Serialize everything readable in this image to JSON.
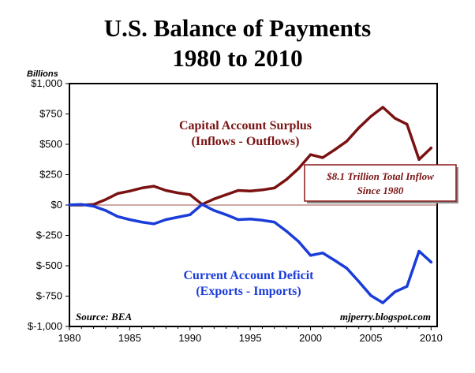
{
  "title_line1": "U.S. Balance of Payments",
  "title_line2": "1980 to 2010",
  "units_label": "Billions",
  "source": "Source: BEA",
  "credit": "mjperry.blogspot.com",
  "colors": {
    "capital": "#7a1212",
    "current": "#1a3cd8",
    "zero_line": "#a05050",
    "callout_border": "#8b1a1a",
    "callout_text": "#7a1212"
  },
  "chart_data": {
    "type": "line",
    "title": "U.S. Balance of Payments 1980 to 2010",
    "ylabel": "Billions",
    "xlabel": "",
    "xlim": [
      1980,
      2010.5
    ],
    "ylim": [
      -1000,
      1000
    ],
    "x_ticks": [
      1980,
      1985,
      1990,
      1995,
      2000,
      2005,
      2010
    ],
    "y_ticks": [
      {
        "value": 1000,
        "label": "$1,000"
      },
      {
        "value": 750,
        "label": "$750"
      },
      {
        "value": 500,
        "label": "$500"
      },
      {
        "value": 250,
        "label": "$250"
      },
      {
        "value": 0,
        "label": "$0"
      },
      {
        "value": -250,
        "label": "$-250"
      },
      {
        "value": -500,
        "label": "$-500"
      },
      {
        "value": -750,
        "label": "$-750"
      },
      {
        "value": -1000,
        "label": "$-1,000"
      }
    ],
    "grid": false,
    "x": [
      1980,
      1981,
      1982,
      1983,
      1984,
      1985,
      1986,
      1987,
      1988,
      1989,
      1990,
      1991,
      1992,
      1993,
      1994,
      1995,
      1996,
      1997,
      1998,
      1999,
      2000,
      2001,
      2002,
      2003,
      2004,
      2005,
      2006,
      2007,
      2008,
      2009,
      2010
    ],
    "series": [
      {
        "name": "Capital Account Surplus (Inflows - Outflows)",
        "values": [
          0,
          0,
          5,
          45,
          95,
          115,
          140,
          155,
          120,
          100,
          85,
          5,
          50,
          85,
          120,
          115,
          125,
          140,
          210,
          300,
          415,
          390,
          455,
          525,
          635,
          730,
          805,
          715,
          665,
          375,
          470
        ]
      },
      {
        "name": "Current Account Deficit (Exports - Imports)",
        "values": [
          2,
          5,
          -10,
          -45,
          -95,
          -120,
          -140,
          -155,
          -120,
          -100,
          -80,
          5,
          -45,
          -80,
          -120,
          -115,
          -125,
          -140,
          -215,
          -300,
          -415,
          -395,
          -455,
          -520,
          -630,
          -745,
          -805,
          -715,
          -670,
          -380,
          -470
        ]
      }
    ],
    "annotations": [
      {
        "line1": "Capital Account Surplus",
        "line2": "(Inflows - Outflows)"
      },
      {
        "line1": "Current Account Deficit",
        "line2": "(Exports - Imports)"
      },
      {
        "line1": "$8.1 Trillion Total Inflow",
        "line2": "Since 1980"
      }
    ]
  }
}
